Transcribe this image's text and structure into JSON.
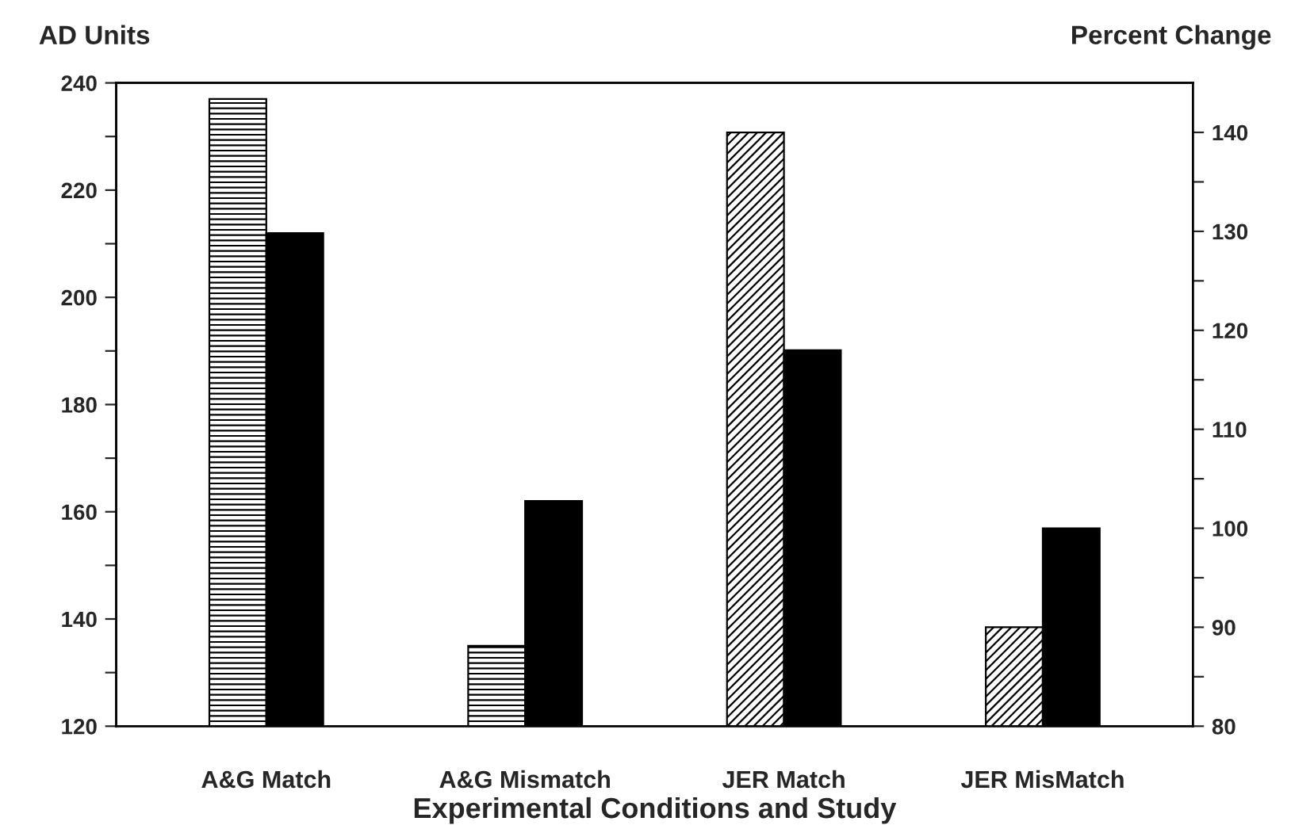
{
  "chart_data": {
    "type": "bar",
    "xlabel": "Experimental Conditions and Study",
    "ylabel": "AD Units",
    "y2label": "Percent Change",
    "categories": [
      "A&G Match",
      "A&G Mismatch",
      "JER Match",
      "JER MisMatch"
    ],
    "series": [
      {
        "color": "#000000",
        "values": [
          237,
          135,
          null,
          null
        ]
      },
      {
        "color": "#000000",
        "values": [
          212,
          162,
          null,
          null
        ]
      },
      {
        "color": "#000000",
        "axis": "y2",
        "values": [
          null,
          null,
          140,
          90
        ]
      },
      {
        "color": "#000000",
        "axis": "y2",
        "values": [
          null,
          null,
          118,
          100
        ]
      }
    ],
    "ylim": [
      120,
      240
    ],
    "yticks": [
      120,
      {
        "value": 130,
        "label": null
      },
      140,
      {
        "value": 150,
        "label": null
      },
      160,
      {
        "value": 170,
        "label": null
      },
      180,
      {
        "value": 190,
        "label": null
      },
      200,
      {
        "value": 210,
        "label": null
      },
      220,
      {
        "value": 230,
        "label": null
      },
      240
    ],
    "y2lim": [
      80,
      145
    ],
    "y2ticks": [
      80,
      {
        "value": 85,
        "label": null
      },
      90,
      {
        "value": 95,
        "label": null
      },
      100,
      {
        "value": 105,
        "label": null
      },
      110,
      {
        "value": 115,
        "label": null
      },
      120,
      {
        "value": 125,
        "label": null
      },
      130,
      {
        "value": 135,
        "label": null
      },
      140
    ],
    "grid": false,
    "legend": false
  }
}
